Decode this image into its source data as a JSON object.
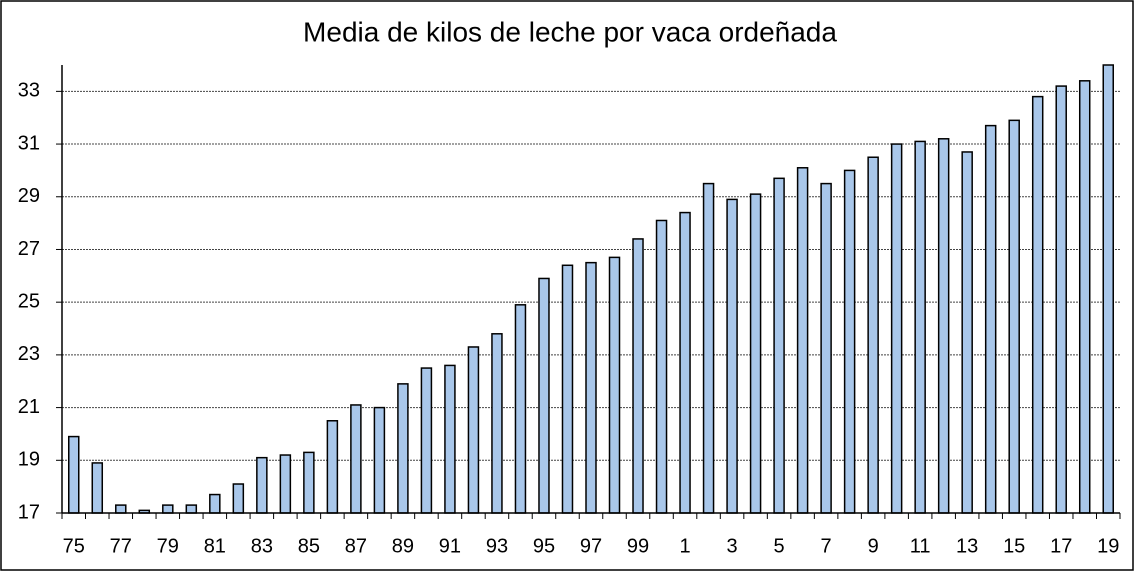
{
  "chart_data": {
    "type": "bar",
    "title": "Media de kilos de leche por vaca ordeñada",
    "categories": [
      "75",
      null,
      "77",
      null,
      "79",
      null,
      "81",
      null,
      "83",
      null,
      "85",
      null,
      "87",
      null,
      "89",
      null,
      "91",
      null,
      "93",
      null,
      "95",
      null,
      "97",
      null,
      "99",
      null,
      "1",
      null,
      "3",
      null,
      "5",
      null,
      "7",
      null,
      "9",
      null,
      "11",
      null,
      "13",
      null,
      "15",
      null,
      "17",
      null,
      "19"
    ],
    "values": [
      19.9,
      18.9,
      17.3,
      17.1,
      17.3,
      17.3,
      17.7,
      18.1,
      19.1,
      19.2,
      19.3,
      20.5,
      21.1,
      21.0,
      21.9,
      22.5,
      22.6,
      23.3,
      23.8,
      24.9,
      25.9,
      26.4,
      26.5,
      26.7,
      27.4,
      28.1,
      28.4,
      29.5,
      28.9,
      29.1,
      29.7,
      30.1,
      29.5,
      30.0,
      30.5,
      31.0,
      31.1,
      31.2,
      30.7,
      31.7,
      31.9,
      32.8,
      33.2,
      33.4,
      34.0
    ],
    "color": "#a9c7ea",
    "ylim": [
      17,
      34
    ],
    "yticks": [
      17,
      19,
      21,
      23,
      25,
      27,
      29,
      31,
      33
    ],
    "grid": true
  }
}
